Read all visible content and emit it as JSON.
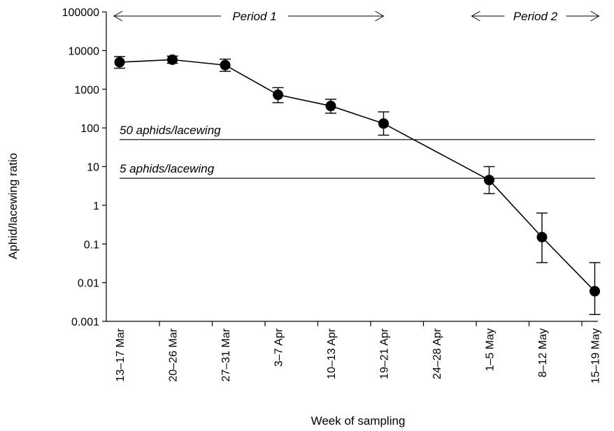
{
  "chart_data": {
    "type": "line",
    "title": "",
    "xlabel": "Week of sampling",
    "ylabel": "Aphid/lacewing ratio",
    "y_scale": "log",
    "ylim": [
      0.001,
      100000
    ],
    "y_ticks": [
      {
        "value": 0.001,
        "label": "0.001"
      },
      {
        "value": 0.01,
        "label": "0.01"
      },
      {
        "value": 0.1,
        "label": "0.1"
      },
      {
        "value": 1,
        "label": "1"
      },
      {
        "value": 10,
        "label": "10"
      },
      {
        "value": 100,
        "label": "100"
      },
      {
        "value": 1000,
        "label": "1000"
      },
      {
        "value": 10000,
        "label": "10000"
      },
      {
        "value": 100000,
        "label": "100000"
      }
    ],
    "categories": [
      "13–17 Mar",
      "20–26 Mar",
      "27–31 Mar",
      "3–7 Apr",
      "10–13 Apr",
      "19–21 Apr",
      "24–28 Apr",
      "1–5 May",
      "8–12 May",
      "15–19 May"
    ],
    "series": [
      {
        "points": [
          {
            "category": "13–17 Mar",
            "value": 5000,
            "err_low": 3500,
            "err_high": 7000
          },
          {
            "category": "20–26 Mar",
            "value": 5800,
            "err_low": 4700,
            "err_high": 7200
          },
          {
            "category": "27–31 Mar",
            "value": 4200,
            "err_low": 2900,
            "err_high": 6000
          },
          {
            "category": "3–7 Apr",
            "value": 720,
            "err_low": 450,
            "err_high": 1100
          },
          {
            "category": "10–13 Apr",
            "value": 370,
            "err_low": 240,
            "err_high": 550
          },
          {
            "category": "19–21 Apr",
            "value": 130,
            "err_low": 65,
            "err_high": 260
          },
          {
            "category": "1–5 May",
            "value": 4.5,
            "err_low": 2,
            "err_high": 10
          },
          {
            "category": "8–12 May",
            "value": 0.15,
            "err_low": 0.033,
            "err_high": 0.63
          },
          {
            "category": "15–19 May",
            "value": 0.006,
            "err_low": 0.0015,
            "err_high": 0.033
          }
        ]
      }
    ],
    "reference_lines": [
      {
        "value": 50,
        "label": "50 aphids/lacewing"
      },
      {
        "value": 5,
        "label": "5 aphids/lacewing"
      }
    ],
    "periods": [
      {
        "label": "Period 1",
        "from": "13–17 Mar",
        "to": "19–21 Apr"
      },
      {
        "label": "Period 2",
        "from": "1–5 May",
        "to": "15–19 May"
      }
    ],
    "grid": false,
    "legend": "none"
  }
}
